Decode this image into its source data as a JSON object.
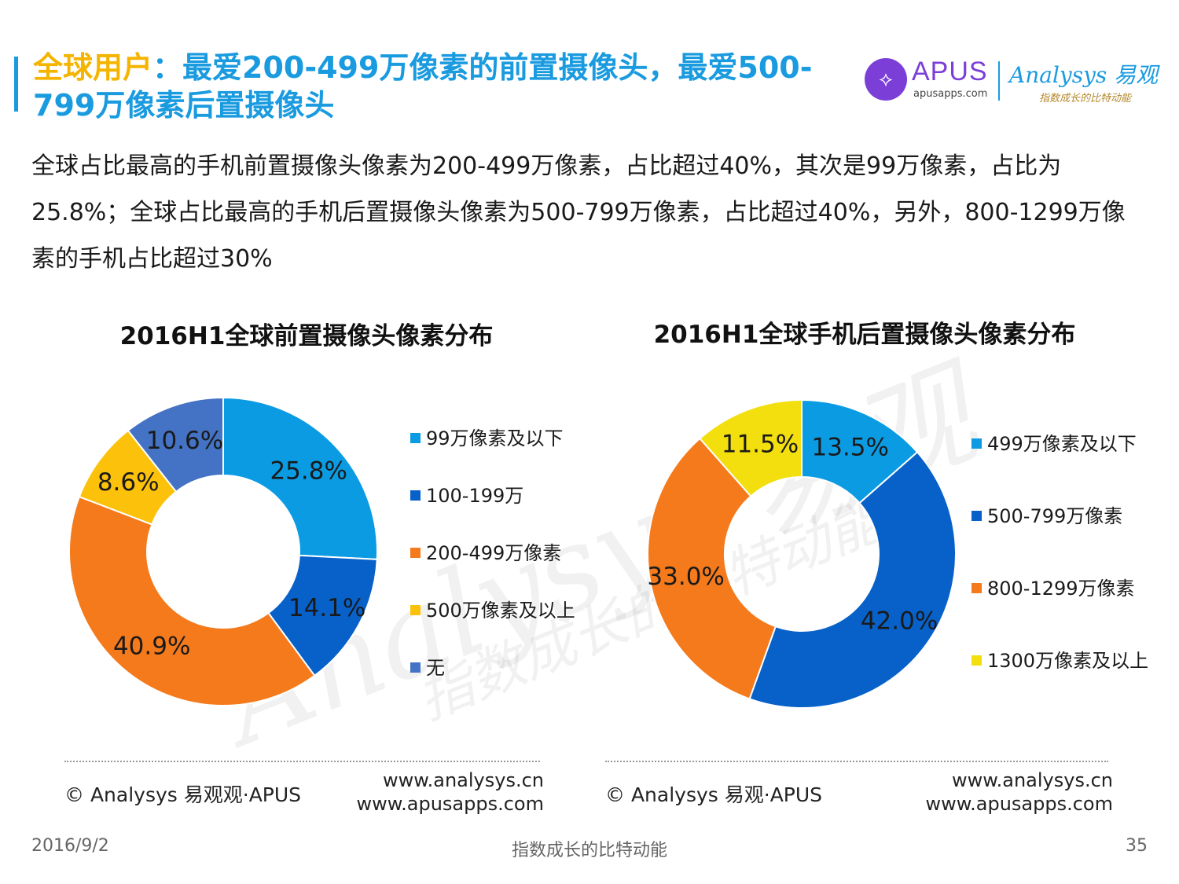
{
  "header": {
    "title_highlight": "全球用户",
    "title_rest": "：最爱200-499万像素的前置摄像头，最爱500-799万像素后置摄像头",
    "apus_mark": "⟡",
    "apus_name": "APUS",
    "apus_url": "apusapps.com",
    "analysys_name": "Analysys 易观",
    "analysys_tagline": "指数成长的比特动能"
  },
  "description": "全球占比最高的手机前置摄像头像素为200-499万像素，占比超过40%，其次是99万像素，占比为25.8%；全球占比最高的手机后置摄像头像素为500-799万像素，占比超过40%，另外，800-1299万像素的手机占比超过30%",
  "chart_data": [
    {
      "type": "pie",
      "donut": true,
      "title": "2016H1全球前置摄像头像素分布",
      "start_angle_deg": 0,
      "direction": "clockwise",
      "categories": [
        "99万像素及以下",
        "100-199万",
        "200-499万像素",
        "500万像素及以上",
        "无"
      ],
      "values": [
        25.8,
        14.1,
        40.9,
        8.6,
        10.6
      ],
      "labels": [
        "25.8%",
        "14.1%",
        "40.9%",
        "8.6%",
        "10.6%"
      ],
      "colors": [
        "#0b9be3",
        "#0761c9",
        "#f57a1c",
        "#fbc10b",
        "#4472c4"
      ],
      "legend": "right"
    },
    {
      "type": "pie",
      "donut": true,
      "title": "2016H1全球手机后置摄像头像素分布",
      "start_angle_deg": 0,
      "direction": "clockwise",
      "categories": [
        "499万像素及以下",
        "500-799万像素",
        "800-1299万像素",
        "1300万像素及以上"
      ],
      "values": [
        13.5,
        42.0,
        33.0,
        11.5
      ],
      "labels": [
        "13.5%",
        "42.0%",
        "33.0%",
        "11.5%"
      ],
      "colors": [
        "#0b9be3",
        "#0761c9",
        "#f57a1c",
        "#f4df0e"
      ],
      "legend": "right"
    }
  ],
  "sources": {
    "left_copyright": "© Analysys 易观观·APUS",
    "left_site1": "www.analysys.cn",
    "left_site2": "www.apusapps.com",
    "right_copyright": "© Analysys 易观·APUS",
    "right_site1": "www.analysys.cn",
    "right_site2": "www.apusapps.com"
  },
  "watermark": {
    "text": "Analysys 易观",
    "tagline": "指数成长的比特动能"
  },
  "footer": {
    "date": "2016/9/2",
    "center": "指数成长的比特动能",
    "page": "35"
  }
}
